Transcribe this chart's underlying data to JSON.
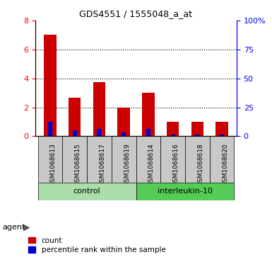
{
  "title": "GDS4551 / 1555048_a_at",
  "samples": [
    "GSM1068613",
    "GSM1068615",
    "GSM1068617",
    "GSM1068619",
    "GSM1068614",
    "GSM1068616",
    "GSM1068618",
    "GSM1068620"
  ],
  "counts": [
    7.0,
    2.65,
    3.75,
    2.0,
    3.0,
    1.0,
    1.0,
    1.0
  ],
  "percentile_ranks": [
    12.5,
    5.0,
    6.25,
    3.5,
    6.25,
    1.5,
    1.5,
    1.5
  ],
  "groups": [
    "control",
    "control",
    "control",
    "control",
    "interleukin-10",
    "interleukin-10",
    "interleukin-10",
    "interleukin-10"
  ],
  "group_colors": {
    "control": "#aaddaa",
    "interleukin-10": "#55cc55"
  },
  "bar_color_red": "#CC0000",
  "bar_color_blue": "#0000CC",
  "ylim_left": [
    0,
    8
  ],
  "ylim_right": [
    0,
    100
  ],
  "yticks_left": [
    0,
    2,
    4,
    6,
    8
  ],
  "yticks_right": [
    0,
    25,
    50,
    75,
    100
  ],
  "ytick_labels_right": [
    "0",
    "25",
    "50",
    "75",
    "100%"
  ],
  "sample_bg": "#C8C8C8",
  "agent_label": "agent",
  "legend_count": "count",
  "legend_percentile": "percentile rank within the sample",
  "bar_width": 0.5
}
